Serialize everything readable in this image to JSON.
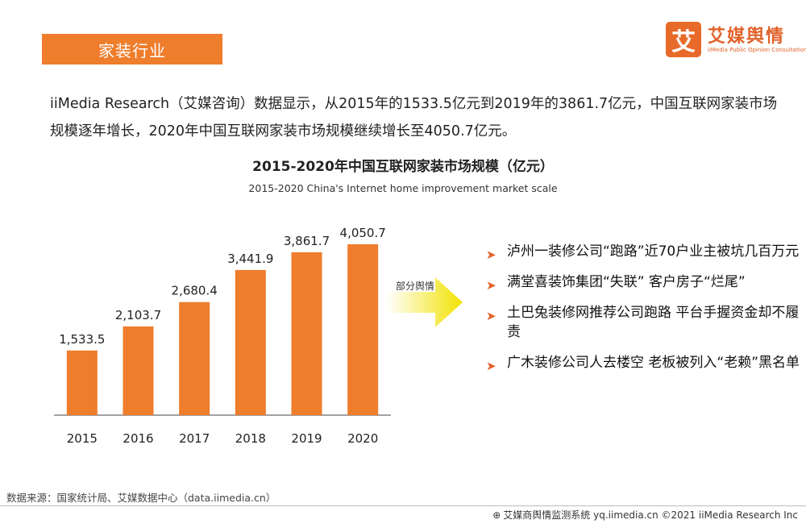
{
  "header": {
    "section_title": "家装行业"
  },
  "logo": {
    "mark": "艾",
    "name": "艾媒舆情",
    "subtitle": "iiMedia Public Opinion Consultation"
  },
  "intro_text": "iiMedia Research（艾媒咨询）数据显示，从2015年的1533.5亿元到2019年的3861.7亿元，中国互联网家装市场规模逐年增长，2020年中国互联网家装市场规模继续增长至4050.7亿元。",
  "chart_data": {
    "type": "bar",
    "title": "2015-2020年中国互联网家装市场规模（亿元）",
    "subtitle": "2015-2020 China's Internet home improvement market scale",
    "categories": [
      "2015",
      "2016",
      "2017",
      "2018",
      "2019",
      "2020"
    ],
    "values": [
      1533.5,
      2103.7,
      2680.4,
      3441.9,
      3861.7,
      4050.7
    ],
    "value_labels": [
      "1,533.5",
      "2,103.7",
      "2,680.4",
      "3,441.9",
      "3,861.7",
      "4,050.7"
    ],
    "ylim": [
      0,
      4300
    ],
    "color": "#ee7d2c",
    "grid": false
  },
  "arrow": {
    "label": "部分舆情",
    "color": "#f2e200"
  },
  "news_items": [
    "泸州一装修公司“跑路”近70户业主被坑几百万元",
    "满堂喜装饰集团“失联” 客户房子“烂尾”",
    "土巴兔装修网推荐公司跑路 平台手握资金却不履责",
    "广木装修公司人去楼空 老板被列入“老赖”黑名单"
  ],
  "source": "数据来源：国家统计局、艾媒数据中心（data.iimedia.cn）",
  "footer": "艾媒商舆情监测系统 yq.iimedia.cn  ©2021  iiMedia Research  Inc",
  "footer_icon": "globe-icon"
}
